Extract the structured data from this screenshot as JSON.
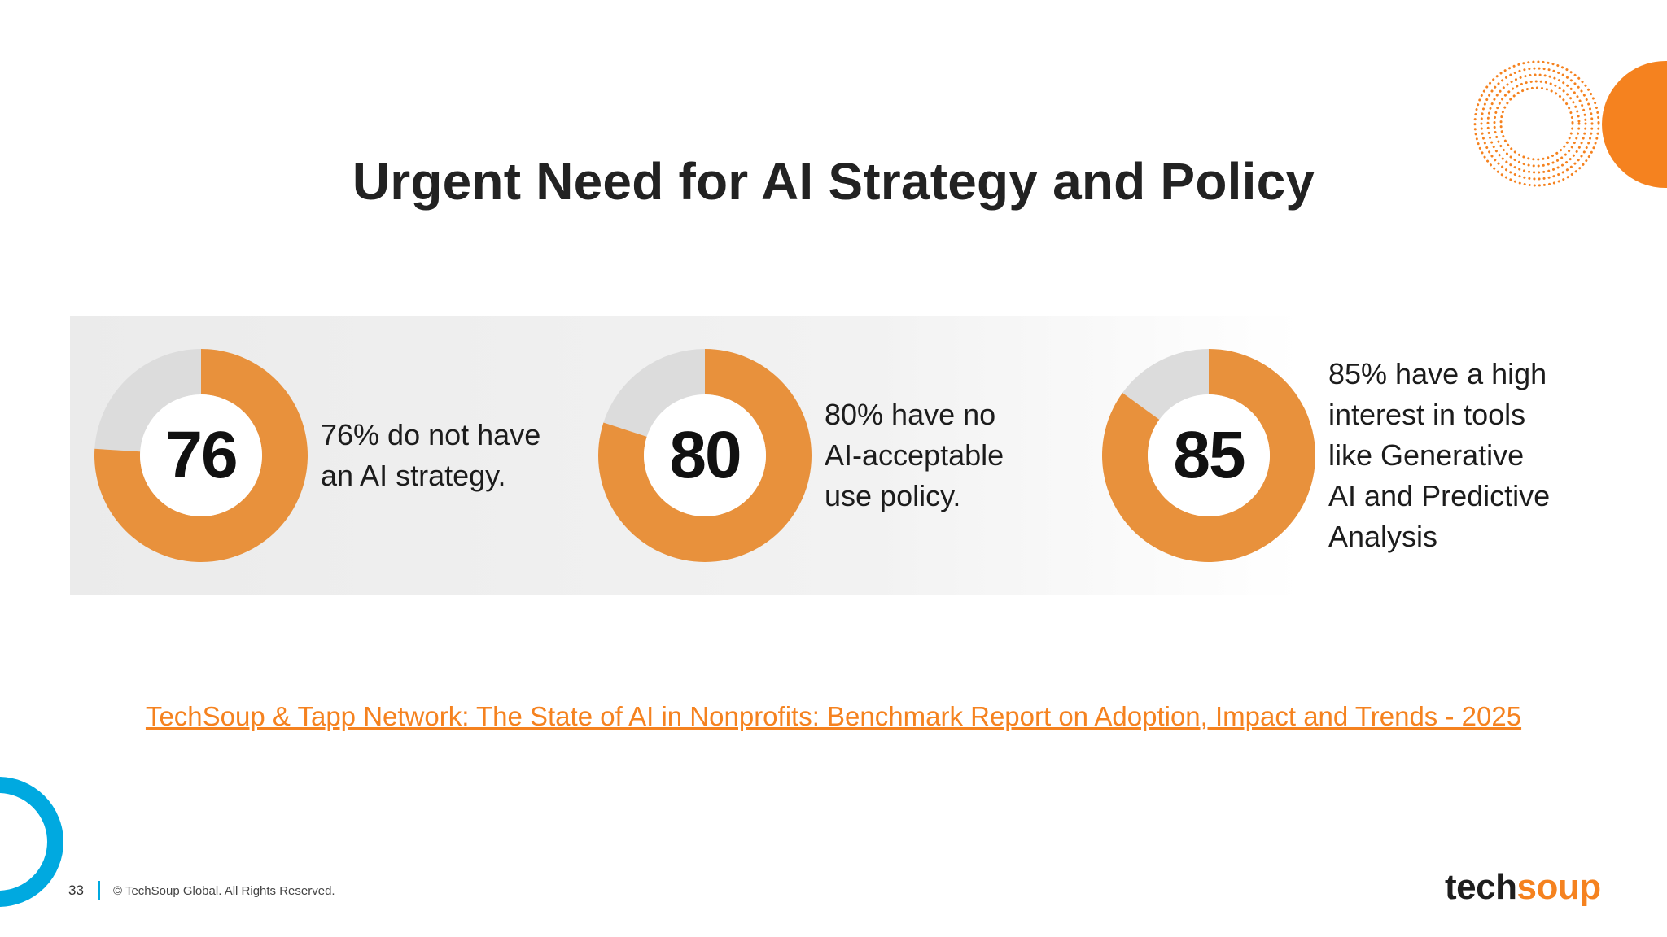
{
  "slide": {
    "title": "Urgent Need for AI Strategy and Policy",
    "source_link": "TechSoup & Tapp Network: The State of AI in Nonprofits: Benchmark Report on Adoption, Impact and Trends - 2025"
  },
  "chart_data": {
    "type": "pie",
    "variant": "donut",
    "value_max": 100,
    "items": [
      {
        "value": 76,
        "label": "76",
        "lines": [
          "76% do not have",
          "an AI strategy."
        ]
      },
      {
        "value": 80,
        "label": "80",
        "lines": [
          "80% have no",
          "AI-acceptable",
          "use policy."
        ]
      },
      {
        "value": 85,
        "label": "85",
        "lines": [
          "85% have a high",
          "interest in tools",
          "like Generative",
          "AI and Predictive",
          "Analysis"
        ]
      }
    ],
    "colors": {
      "filled": "#e8913c",
      "remainder": "#dcdcdc",
      "center": "#ffffff"
    }
  },
  "footer": {
    "page_number": "33",
    "copyright": "© TechSoup Global. All Rights Reserved."
  },
  "logo": {
    "part1": "tech",
    "part2": "soup",
    "part1_color": "#1e1e1e",
    "part2_color": "#f5821f",
    "alt_text": "techsoup"
  },
  "theme": {
    "accent_orange": "#f5821f",
    "accent_blue": "#00a9e0",
    "title_color": "#222222"
  }
}
